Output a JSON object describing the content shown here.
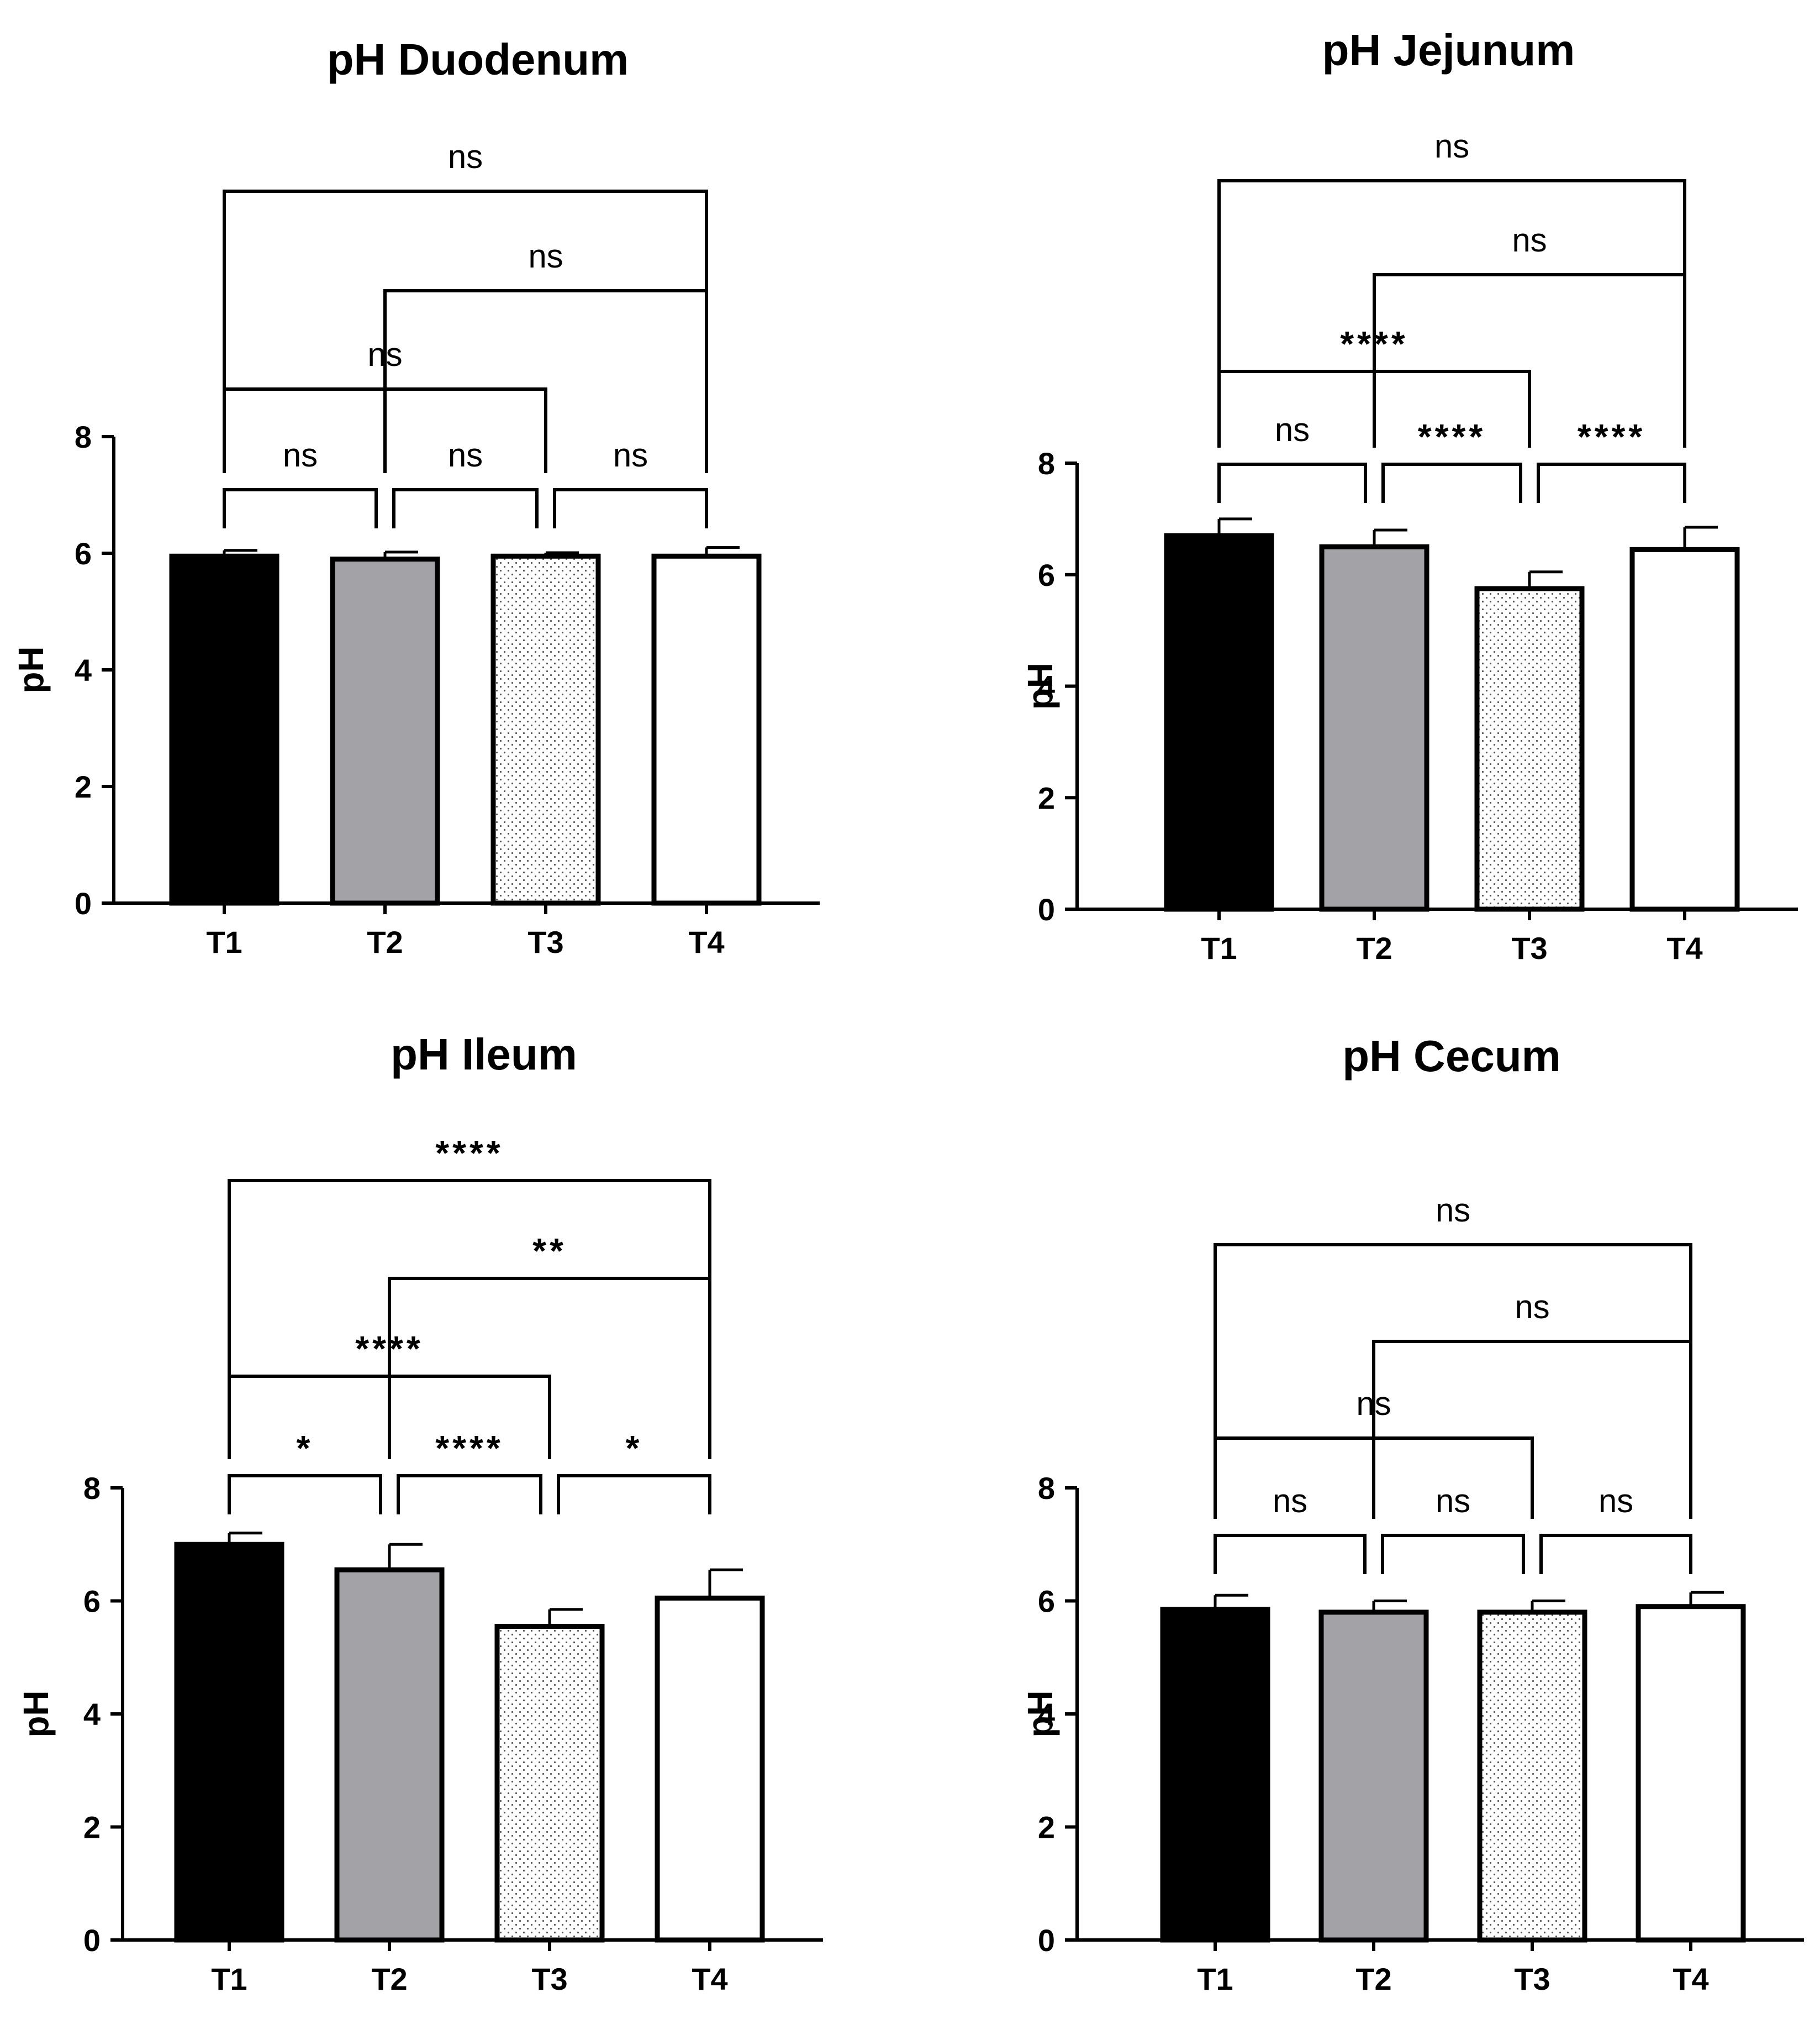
{
  "colors": {
    "T1": "#000000",
    "T2": "#a3a2a7",
    "T3": "#ffffff",
    "T4": "#ffffff",
    "axis": "#000000",
    "stipple": "#555555"
  },
  "chart_data": [
    {
      "type": "bar",
      "title": "pH Duodenum",
      "xlabel": "",
      "ylabel": "pH",
      "categories": [
        "T1",
        "T2",
        "T3",
        "T4"
      ],
      "values": [
        5.95,
        5.9,
        5.95,
        5.95
      ],
      "errors": [
        0.1,
        0.12,
        0.06,
        0.15
      ],
      "ylim": [
        0,
        8
      ],
      "yticks": [
        0,
        2,
        4,
        6,
        8
      ],
      "comparisons": [
        {
          "from": "T1",
          "to": "T2",
          "label": "ns",
          "level": 0
        },
        {
          "from": "T2",
          "to": "T3",
          "label": "ns",
          "level": 0
        },
        {
          "from": "T3",
          "to": "T4",
          "label": "ns",
          "level": 0
        },
        {
          "from": "T1",
          "to": "T3",
          "label": "ns",
          "level": 1
        },
        {
          "from": "T2",
          "to": "T4",
          "label": "ns",
          "level": 2
        },
        {
          "from": "T1",
          "to": "T4",
          "label": "ns",
          "level": 3
        }
      ]
    },
    {
      "type": "bar",
      "title": "pH Jejunum",
      "xlabel": "",
      "ylabel": "pH",
      "categories": [
        "T1",
        "T2",
        "T3",
        "T4"
      ],
      "values": [
        6.7,
        6.5,
        5.75,
        6.45
      ],
      "errors": [
        0.3,
        0.3,
        0.3,
        0.4
      ],
      "ylim": [
        0,
        8
      ],
      "yticks": [
        0,
        2,
        4,
        6,
        8
      ],
      "comparisons": [
        {
          "from": "T1",
          "to": "T2",
          "label": "ns",
          "level": 0
        },
        {
          "from": "T2",
          "to": "T3",
          "label": "****",
          "level": 0
        },
        {
          "from": "T3",
          "to": "T4",
          "label": "****",
          "level": 0
        },
        {
          "from": "T1",
          "to": "T3",
          "label": "****",
          "level": 1
        },
        {
          "from": "T2",
          "to": "T4",
          "label": "ns",
          "level": 2
        },
        {
          "from": "T1",
          "to": "T4",
          "label": "ns",
          "level": 3
        }
      ]
    },
    {
      "type": "bar",
      "title": "pH Ileum",
      "xlabel": "",
      "ylabel": "pH",
      "categories": [
        "T1",
        "T2",
        "T3",
        "T4"
      ],
      "values": [
        7.0,
        6.55,
        5.55,
        6.05
      ],
      "errors": [
        0.2,
        0.45,
        0.3,
        0.5
      ],
      "ylim": [
        0,
        8
      ],
      "yticks": [
        0,
        2,
        4,
        6,
        8
      ],
      "comparisons": [
        {
          "from": "T1",
          "to": "T2",
          "label": "*",
          "level": 0
        },
        {
          "from": "T2",
          "to": "T3",
          "label": "****",
          "level": 0
        },
        {
          "from": "T3",
          "to": "T4",
          "label": "*",
          "level": 0
        },
        {
          "from": "T1",
          "to": "T3",
          "label": "****",
          "level": 1
        },
        {
          "from": "T2",
          "to": "T4",
          "label": "**",
          "level": 2
        },
        {
          "from": "T1",
          "to": "T4",
          "label": "****",
          "level": 3
        }
      ]
    },
    {
      "type": "bar",
      "title": "pH Cecum",
      "xlabel": "",
      "ylabel": "pH",
      "categories": [
        "T1",
        "T2",
        "T3",
        "T4"
      ],
      "values": [
        5.85,
        5.8,
        5.8,
        5.9
      ],
      "errors": [
        0.25,
        0.2,
        0.2,
        0.25
      ],
      "ylim": [
        0,
        8
      ],
      "yticks": [
        0,
        2,
        4,
        6,
        8
      ],
      "comparisons": [
        {
          "from": "T1",
          "to": "T2",
          "label": "ns",
          "level": 0
        },
        {
          "from": "T2",
          "to": "T3",
          "label": "ns",
          "level": 0
        },
        {
          "from": "T3",
          "to": "T4",
          "label": "ns",
          "level": 0
        },
        {
          "from": "T1",
          "to": "T3",
          "label": "ns",
          "level": 1
        },
        {
          "from": "T2",
          "to": "T4",
          "label": "ns",
          "level": 2
        },
        {
          "from": "T1",
          "to": "T4",
          "label": "ns",
          "level": 3
        }
      ]
    }
  ]
}
